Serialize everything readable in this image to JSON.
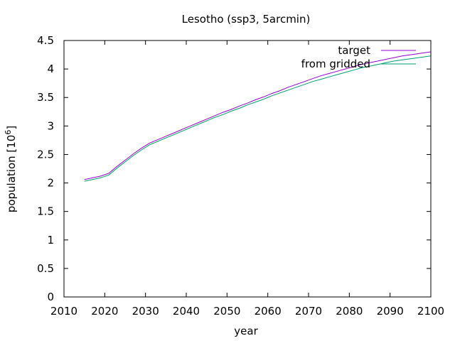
{
  "chart_data": {
    "type": "line",
    "title": "Lesotho (ssp3, 5arcmin)",
    "xlabel": "year",
    "ylabel_base": "population [10",
    "ylabel_exp": "6",
    "ylabel_close": "]",
    "xlim": [
      2010,
      2100
    ],
    "ylim": [
      0,
      4.5
    ],
    "xticks": [
      2010,
      2020,
      2030,
      2040,
      2050,
      2060,
      2070,
      2080,
      2090,
      2100
    ],
    "yticks": [
      0,
      0.5,
      1,
      1.5,
      2,
      2.5,
      3,
      3.5,
      4,
      4.5
    ],
    "xtick_labels": [
      "2010",
      "2020",
      "2030",
      "2040",
      "2050",
      "2060",
      "2070",
      "2080",
      "2090",
      "2100"
    ],
    "ytick_labels": [
      "0",
      "0.5",
      "1",
      "1.5",
      "2",
      "2.5",
      "3",
      "3.5",
      "4",
      "4.5"
    ],
    "grid": false,
    "legend_position": "top-right",
    "series": [
      {
        "name": "target",
        "color": "#9400d3",
        "x": [
          2015,
          2017,
          2019,
          2021,
          2023,
          2025,
          2027,
          2029,
          2031,
          2033,
          2035,
          2037,
          2039,
          2041,
          2043,
          2045,
          2047,
          2049,
          2051,
          2053,
          2055,
          2057,
          2059,
          2061,
          2063,
          2065,
          2067,
          2069,
          2071,
          2073,
          2075,
          2077,
          2079,
          2081,
          2083,
          2085,
          2087,
          2089,
          2091,
          2093,
          2095,
          2097,
          2099,
          2100
        ],
        "y": [
          2.06,
          2.09,
          2.12,
          2.17,
          2.29,
          2.4,
          2.51,
          2.61,
          2.7,
          2.76,
          2.82,
          2.88,
          2.94,
          3.0,
          3.06,
          3.12,
          3.18,
          3.24,
          3.29,
          3.35,
          3.4,
          3.46,
          3.51,
          3.57,
          3.62,
          3.68,
          3.73,
          3.78,
          3.83,
          3.88,
          3.92,
          3.96,
          4.0,
          4.04,
          4.08,
          4.11,
          4.14,
          4.17,
          4.2,
          4.23,
          4.25,
          4.27,
          4.29,
          4.3
        ]
      },
      {
        "name": "from gridded",
        "color": "#009e73",
        "x": [
          2015,
          2017,
          2019,
          2021,
          2023,
          2025,
          2027,
          2029,
          2031,
          2033,
          2035,
          2037,
          2039,
          2041,
          2043,
          2045,
          2047,
          2049,
          2051,
          2053,
          2055,
          2057,
          2059,
          2061,
          2063,
          2065,
          2067,
          2069,
          2071,
          2073,
          2075,
          2077,
          2079,
          2081,
          2083,
          2085,
          2087,
          2089,
          2091,
          2093,
          2095,
          2097,
          2099,
          2100
        ],
        "y": [
          2.03,
          2.06,
          2.09,
          2.14,
          2.26,
          2.37,
          2.48,
          2.58,
          2.67,
          2.73,
          2.79,
          2.85,
          2.91,
          2.97,
          3.03,
          3.09,
          3.15,
          3.2,
          3.26,
          3.31,
          3.37,
          3.42,
          3.47,
          3.53,
          3.58,
          3.63,
          3.68,
          3.73,
          3.78,
          3.82,
          3.86,
          3.9,
          3.94,
          3.98,
          4.02,
          4.05,
          4.08,
          4.11,
          4.14,
          4.16,
          4.18,
          4.2,
          4.22,
          4.23
        ]
      }
    ]
  }
}
